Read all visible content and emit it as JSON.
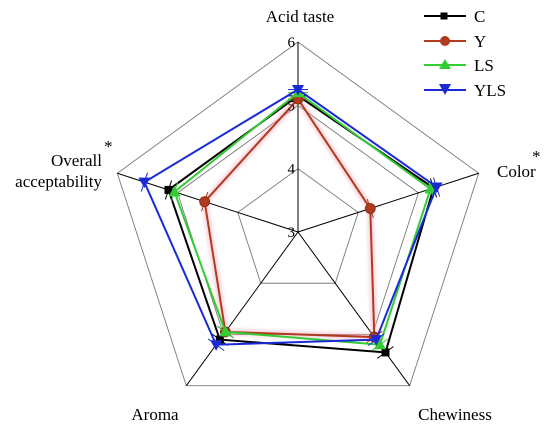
{
  "chart_data": {
    "type": "radar",
    "axes": [
      "Acid taste",
      "Color",
      "Chewiness",
      "Aroma",
      "Overall acceptability"
    ],
    "axis_labels": {
      "acid": "Acid taste",
      "color": "Color",
      "chew": "Chewiness",
      "aroma": "Aroma",
      "overall_line1": "Overall",
      "overall_line2": "acceptability"
    },
    "significance_marks": {
      "color": "*",
      "overall": "*"
    },
    "radial_range": [
      3,
      6
    ],
    "ticks": [
      3,
      4,
      5,
      6
    ],
    "tick_labels": [
      "3",
      "4",
      "5",
      "6"
    ],
    "series": [
      {
        "name": "C",
        "color": "#000000",
        "marker": "square",
        "values": [
          5.15,
          5.25,
          5.35,
          5.1,
          5.15
        ]
      },
      {
        "name": "Y",
        "color": "#b03a1e",
        "marker": "circle",
        "values": [
          5.1,
          4.2,
          5.05,
          4.95,
          4.55
        ]
      },
      {
        "name": "LS",
        "color": "#33cc33",
        "marker": "triangle-up",
        "values": [
          5.2,
          5.2,
          5.2,
          4.95,
          5.05
        ]
      },
      {
        "name": "YLS",
        "color": "#1a2bd6",
        "marker": "triangle-down",
        "values": [
          5.25,
          5.3,
          5.1,
          5.2,
          5.55
        ]
      }
    ],
    "legend": {
      "placement": "top-right"
    },
    "error_bars": true
  }
}
